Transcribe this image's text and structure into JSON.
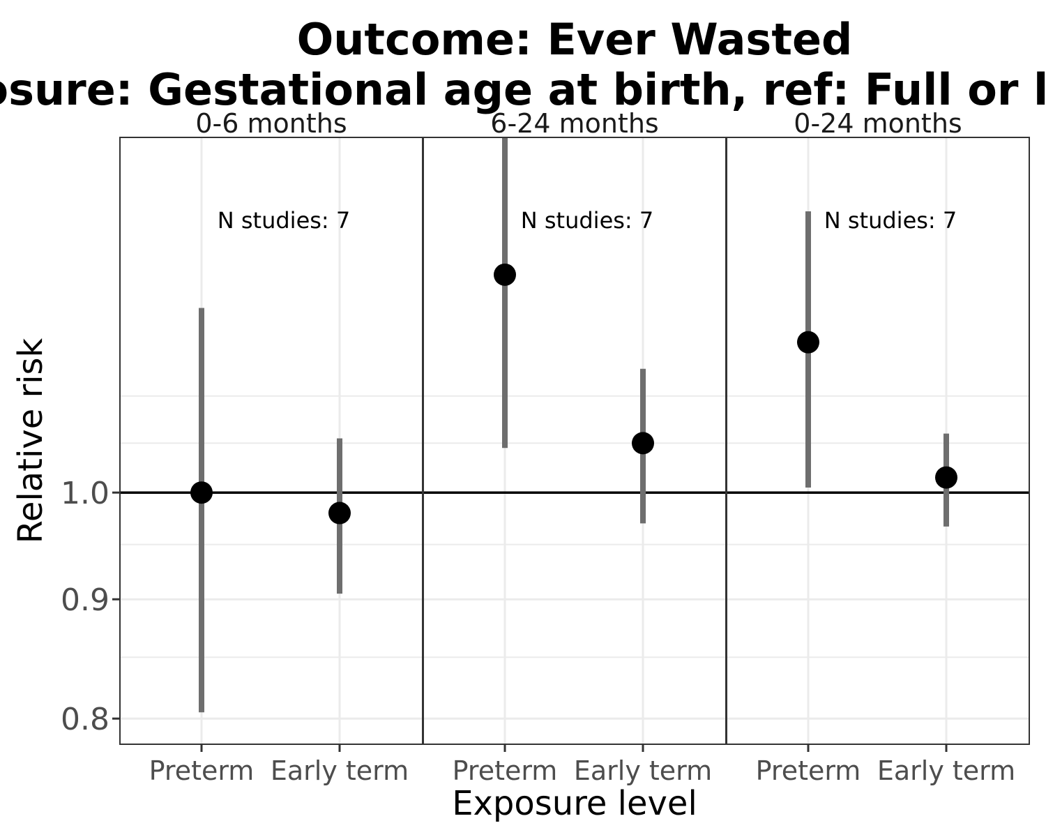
{
  "chart_data": {
    "type": "scatter",
    "title_line1": "Outcome: Ever Wasted",
    "title_line2": "Exposure: Gestational age at birth, ref: Full or late term",
    "xlabel": "Exposure level",
    "ylabel": "Relative risk",
    "y_scale": "log",
    "ylim": [
      0.78,
      1.42
    ],
    "yticks": [
      {
        "value": 0.8,
        "label": "0.8"
      },
      {
        "value": 0.9,
        "label": "0.9"
      },
      {
        "value": 1.0,
        "label": "1.0"
      }
    ],
    "y_minor_grid": [
      0.85,
      0.95,
      1.05,
      1.1
    ],
    "reference_line": 1.0,
    "categories": [
      "Preterm",
      "Early term"
    ],
    "facets": [
      {
        "label": "0-6 months",
        "annotation": "N studies: 7",
        "points": [
          {
            "category": "Preterm",
            "estimate": 1.0,
            "ci_lower": 0.805,
            "ci_upper": 1.2
          },
          {
            "category": "Early term",
            "estimate": 0.98,
            "ci_lower": 0.905,
            "ci_upper": 1.055
          }
        ]
      },
      {
        "label": "6-24 months",
        "annotation": "N studies: 7",
        "points": [
          {
            "category": "Preterm",
            "estimate": 1.24,
            "ci_lower": 1.045,
            "ci_upper": 1.45
          },
          {
            "category": "Early term",
            "estimate": 1.05,
            "ci_lower": 0.97,
            "ci_upper": 1.13
          }
        ]
      },
      {
        "label": "0-24 months",
        "annotation": "N studies: 7",
        "points": [
          {
            "category": "Preterm",
            "estimate": 1.16,
            "ci_lower": 1.005,
            "ci_upper": 1.32
          },
          {
            "category": "Early term",
            "estimate": 1.015,
            "ci_lower": 0.967,
            "ci_upper": 1.06
          }
        ]
      }
    ],
    "grid": true,
    "legend": "none",
    "colors": {
      "point": "#000000",
      "errorbar": "#6e6e6e",
      "reference": "#000000",
      "grid": "#ebebeb",
      "panel_border": "#333333"
    }
  }
}
